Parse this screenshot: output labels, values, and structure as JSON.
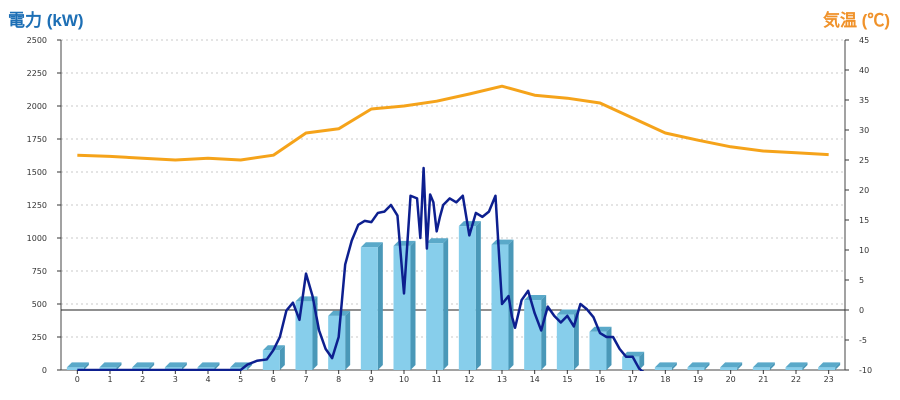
{
  "chart_data": {
    "type": "bar+line",
    "left_axis_label": "電力 (kW)",
    "right_axis_label": "気温 (℃)",
    "categories": [
      "0",
      "1",
      "2",
      "3",
      "4",
      "5",
      "6",
      "7",
      "8",
      "9",
      "10",
      "11",
      "12",
      "13",
      "14",
      "15",
      "16",
      "17",
      "18",
      "19",
      "20",
      "21",
      "22",
      "23"
    ],
    "ylim_left": [
      0,
      2500
    ],
    "y_ticks_left": [
      0,
      250,
      500,
      750,
      1000,
      1250,
      1500,
      1750,
      2000,
      2250,
      2500
    ],
    "ylim_right": [
      -10,
      45
    ],
    "y_ticks_right": [
      -10,
      -5,
      0,
      5,
      10,
      15,
      20,
      25,
      30,
      35,
      40,
      45
    ],
    "grid": true,
    "bars": {
      "axis": "left",
      "color": "#87ceeb",
      "values": [
        20,
        20,
        20,
        20,
        20,
        20,
        150,
        520,
        410,
        930,
        940,
        960,
        1090,
        950,
        530,
        420,
        290,
        100,
        20,
        20,
        20,
        20,
        20,
        20
      ]
    },
    "temperature": {
      "axis": "right",
      "color": "#f5a31a",
      "x": [
        0,
        1,
        2,
        3,
        4,
        5,
        6,
        7,
        8,
        9,
        10,
        11,
        12,
        13,
        14,
        15,
        16,
        17,
        18,
        19,
        20,
        21,
        22,
        23
      ],
      "values": [
        25.8,
        25.6,
        25.3,
        25.0,
        25.3,
        25.0,
        25.8,
        29.5,
        30.2,
        33.5,
        34.0,
        34.8,
        36.0,
        37.3,
        35.8,
        35.3,
        34.5,
        32.0,
        29.5,
        28.3,
        27.2,
        26.5,
        26.2,
        25.9
      ]
    },
    "power_line": {
      "axis": "left",
      "color": "#0d1f8f",
      "x": [
        0,
        1,
        2,
        3,
        4,
        5,
        5.2,
        5.5,
        5.8,
        6.0,
        6.2,
        6.4,
        6.6,
        6.8,
        7.0,
        7.2,
        7.4,
        7.6,
        7.8,
        8.0,
        8.2,
        8.4,
        8.6,
        8.8,
        9.0,
        9.2,
        9.4,
        9.6,
        9.8,
        10.0,
        10.2,
        10.4,
        10.5,
        10.6,
        10.7,
        10.8,
        10.9,
        11.0,
        11.1,
        11.2,
        11.4,
        11.6,
        11.8,
        12.0,
        12.2,
        12.4,
        12.6,
        12.8,
        13.0,
        13.2,
        13.3,
        13.4,
        13.6,
        13.8,
        14.0,
        14.2,
        14.4,
        14.6,
        14.8,
        15.0,
        15.2,
        15.4,
        15.6,
        15.8,
        16.0,
        16.2,
        16.4,
        16.6,
        16.8,
        17.0,
        17.2,
        17.4
      ],
      "values": [
        0,
        0,
        0,
        0,
        0,
        0,
        40,
        70,
        80,
        150,
        250,
        450,
        510,
        380,
        730,
        560,
        300,
        160,
        90,
        250,
        800,
        980,
        1100,
        1130,
        1120,
        1190,
        1200,
        1250,
        1170,
        580,
        1320,
        1300,
        1000,
        1530,
        920,
        1330,
        1270,
        1050,
        1160,
        1250,
        1300,
        1270,
        1320,
        1020,
        1190,
        1160,
        1200,
        1320,
        500,
        560,
        410,
        320,
        530,
        600,
        430,
        300,
        480,
        410,
        360,
        410,
        330,
        500,
        460,
        400,
        280,
        250,
        250,
        160,
        100,
        100,
        10,
        -30
      ]
    },
    "x_ticks": [
      "0",
      "1",
      "2",
      "3",
      "4",
      "5",
      "6",
      "7",
      "8",
      "9",
      "10",
      "11",
      "12",
      "13",
      "14",
      "15",
      "16",
      "17",
      "18",
      "19",
      "20",
      "21",
      "22",
      "23"
    ]
  }
}
